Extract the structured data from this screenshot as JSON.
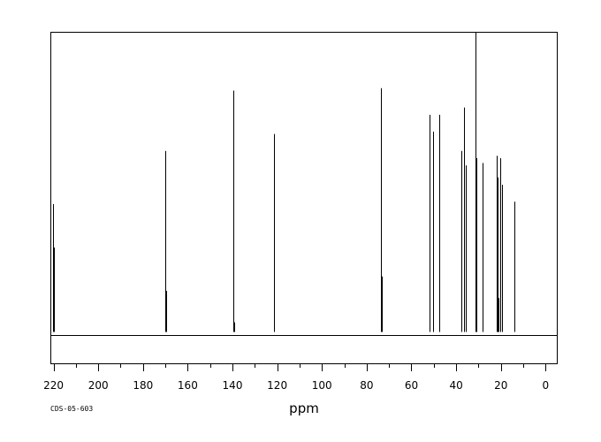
{
  "chart_data": {
    "type": "line",
    "subtype": "nmr-stick-spectrum",
    "xlabel": "ppm",
    "x_reversed": true,
    "xlim": [
      221,
      -5
    ],
    "ylim": [
      -13,
      124
    ],
    "grid": false,
    "xticks": [
      220,
      200,
      180,
      160,
      140,
      120,
      100,
      80,
      60,
      40,
      20,
      0
    ],
    "tick_labels": [
      "220",
      "200",
      "180",
      "160",
      "140",
      "120",
      "100",
      "80",
      "60",
      "40",
      "20",
      "0"
    ],
    "code": "CDS-05-603",
    "peaks": [
      {
        "ppm": 220.4,
        "intensity": 53
      },
      {
        "ppm": 220.0,
        "intensity": 35
      },
      {
        "ppm": 170.0,
        "intensity": 75
      },
      {
        "ppm": 169.8,
        "intensity": 17
      },
      {
        "ppm": 139.6,
        "intensity": 100
      },
      {
        "ppm": 139.4,
        "intensity": 4
      },
      {
        "ppm": 121.5,
        "intensity": 82
      },
      {
        "ppm": 73.7,
        "intensity": 101
      },
      {
        "ppm": 73.4,
        "intensity": 23
      },
      {
        "ppm": 51.8,
        "intensity": 90
      },
      {
        "ppm": 50.2,
        "intensity": 83
      },
      {
        "ppm": 47.7,
        "intensity": 90
      },
      {
        "ppm": 47.5,
        "intensity": 20
      },
      {
        "ppm": 37.8,
        "intensity": 75
      },
      {
        "ppm": 36.6,
        "intensity": 93
      },
      {
        "ppm": 35.8,
        "intensity": 69
      },
      {
        "ppm": 35.6,
        "intensity": 15
      },
      {
        "ppm": 31.5,
        "intensity": 124
      },
      {
        "ppm": 31.2,
        "intensity": 71
      },
      {
        "ppm": 31.0,
        "intensity": 72
      },
      {
        "ppm": 28.2,
        "intensity": 70
      },
      {
        "ppm": 21.9,
        "intensity": 73
      },
      {
        "ppm": 21.3,
        "intensity": 64
      },
      {
        "ppm": 21.0,
        "intensity": 14
      },
      {
        "ppm": 20.1,
        "intensity": 72
      },
      {
        "ppm": 19.6,
        "intensity": 61
      },
      {
        "ppm": 19.3,
        "intensity": 40
      },
      {
        "ppm": 13.8,
        "intensity": 54
      }
    ]
  }
}
